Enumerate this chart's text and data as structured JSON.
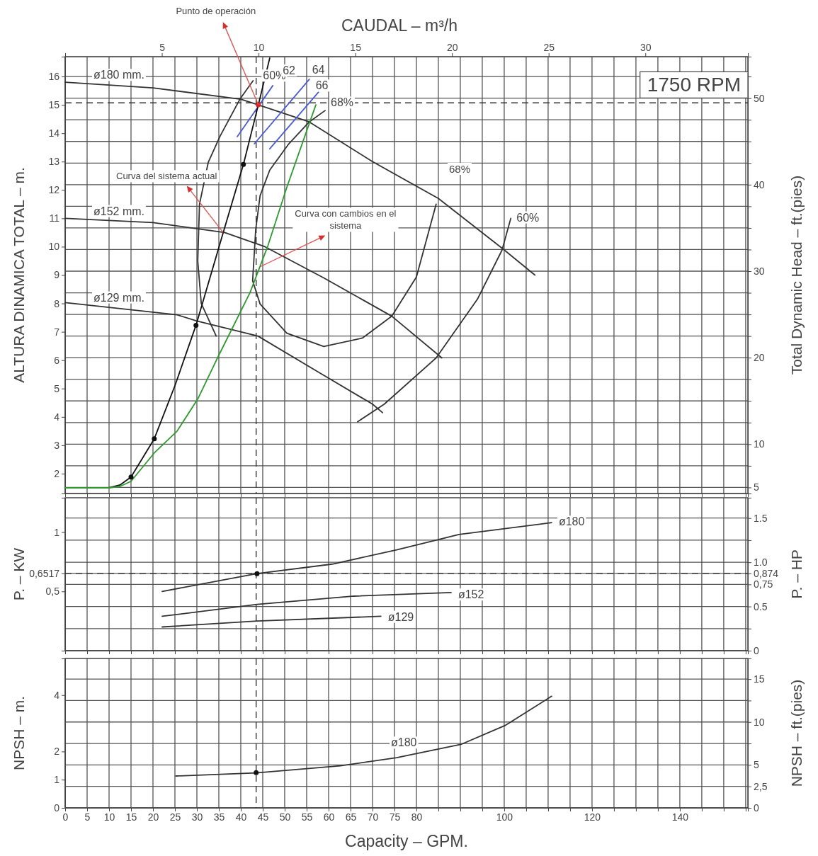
{
  "chart_data": [
    {
      "type": "line",
      "x2label": "CAUDAL – m³/h",
      "ylabel": "ALTURA DINAMICA TOTAL – m.",
      "y2label": "Total Dynamic Head – ft.(pies)",
      "xlim": [
        0,
        155.5
      ],
      "ylim": [
        1.3,
        16.7
      ],
      "y2lim": [
        4.3,
        54.8
      ],
      "x2lim": [
        0,
        35.3
      ],
      "xticks": [
        0,
        5,
        10,
        15,
        20,
        25,
        30,
        35,
        40,
        45,
        50,
        55,
        60,
        65,
        70,
        75,
        80,
        85,
        90,
        95,
        100,
        105,
        110,
        115,
        120,
        125,
        130,
        135,
        140,
        145,
        150,
        155
      ],
      "yticks": [
        2,
        3,
        4,
        5,
        6,
        7,
        8,
        9,
        10,
        11,
        12,
        13,
        14,
        15,
        16
      ],
      "y2ticks": [
        5,
        {
          "value": 7.5,
          "label": null
        },
        10,
        {
          "value": 12.5,
          "label": null
        },
        {
          "value": 15,
          "label": null
        },
        {
          "value": 17.5,
          "label": null
        },
        20,
        {
          "value": 22.5,
          "label": null
        },
        {
          "value": 25,
          "label": null
        },
        {
          "value": 27.5,
          "label": null
        },
        30,
        {
          "value": 32.5,
          "label": null
        },
        {
          "value": 35,
          "label": null
        },
        {
          "value": 37.5,
          "label": null
        },
        40,
        {
          "value": 42.5,
          "label": null
        },
        {
          "value": 45,
          "label": null
        },
        {
          "value": 47.5,
          "label": null
        },
        50,
        {
          "value": 52.5,
          "label": null
        }
      ],
      "x2ticks": [
        5,
        10,
        15,
        20,
        25,
        30
      ],
      "tick_labels": "y",
      "grid": true,
      "series": [
        {
          "name": "ø180 mm.",
          "color": "#333333",
          "x": [
            0,
            20,
            40,
            44,
            55.6,
            70,
            85,
            99.5,
            107
          ],
          "values": [
            15.8,
            15.6,
            15.2,
            15.0,
            14.4,
            13.0,
            11.7,
            9.95,
            9.0
          ]
        },
        {
          "name": "ø152 mm.",
          "color": "#333333",
          "x": [
            0,
            20,
            36.3,
            45.5,
            58.9,
            74.4,
            85.8
          ],
          "values": [
            11.0,
            10.85,
            10.5,
            10.0,
            8.9,
            7.55,
            6.08
          ]
        },
        {
          "name": "ø129 mm.",
          "color": "#333333",
          "x": [
            0,
            25.5,
            30,
            43.9,
            58,
            70,
            72.3
          ],
          "values": [
            8.03,
            7.6,
            7.38,
            6.85,
            5.55,
            4.45,
            4.15
          ]
        },
        {
          "name": "60%",
          "color": "#333333",
          "x": [
            42.8,
            39.8,
            35.3,
            32.6,
            30.6,
            30.2,
            31.0,
            34.4
          ],
          "values": [
            15.85,
            15.2,
            13.9,
            12.98,
            11.5,
            9.5,
            8.0,
            6.85
          ]
        },
        {
          "name": "68%",
          "color": "#333333",
          "x": [
            59.2,
            55.6,
            50.8,
            46.6,
            44.4,
            43.4,
            42.7,
            44.4,
            50.5,
            58.9,
            67.7,
            74.4,
            80,
            84.5
          ],
          "values": [
            14.8,
            14.4,
            13.6,
            12.7,
            11.8,
            10.6,
            8.8,
            7.98,
            6.95,
            6.48,
            6.78,
            7.55,
            8.93,
            11.5
          ]
        },
        {
          "name": "60%",
          "color": "#333333",
          "x": [
            101.5,
            99.5,
            93.9,
            84.5,
            72.7,
            66.6
          ],
          "values": [
            11.0,
            9.88,
            8.15,
            6.08,
            4.45,
            3.83
          ]
        },
        {
          "name": "62",
          "color": "#4b5bdb",
          "x": [
            39.2,
            47.3
          ],
          "values": [
            13.88,
            15.68
          ]
        },
        {
          "name": "64",
          "color": "#4b5bdb",
          "x": [
            43.1,
            55.6
          ],
          "values": [
            13.63,
            15.9
          ]
        },
        {
          "name": "66",
          "color": "#4b5bdb",
          "x": [
            46.6,
            57.7
          ],
          "values": [
            13.45,
            15.45
          ]
        },
        {
          "color": "#111111",
          "x": [
            0,
            10,
            12.5,
            15,
            20.3,
            25,
            29.8,
            36,
            40.6,
            44,
            46.6
          ],
          "values": [
            1.5,
            1.5,
            1.6,
            1.88,
            3.23,
            5.1,
            7.23,
            10.5,
            12.9,
            15.0,
            16.65
          ]
        },
        {
          "color": "#2e9a2e",
          "x": [
            0,
            10,
            12.5,
            15,
            20.3,
            25.5,
            30.2,
            34.7,
            42.1,
            46.1,
            50.5,
            57.1
          ],
          "values": [
            1.5,
            1.5,
            1.55,
            1.73,
            2.73,
            3.5,
            4.63,
            6.08,
            8.38,
            10.0,
            12.1,
            15.0
          ]
        },
        {
          "type": "scatter",
          "color": "#111111",
          "x": [
            15,
            20.3,
            29.8,
            40.6
          ],
          "values": [
            1.88,
            3.23,
            7.23,
            12.9
          ]
        },
        {
          "type": "scatter",
          "color": "#e02020",
          "x": [
            44
          ],
          "values": [
            15.0
          ]
        }
      ],
      "ref_lines": [
        {
          "axis": "x",
          "value": 43.5,
          "line_style": "dashed"
        },
        {
          "axis": "y",
          "value": 15.07,
          "line_style": "dashed"
        }
      ],
      "annotations": [
        {
          "text": "Punto de operación",
          "x": 44,
          "y": 15.0
        },
        {
          "text": "Curva del sistema actual",
          "x": 36,
          "y": 10.5
        },
        {
          "text": "Curva con cambios en el sistema",
          "x": 44.5,
          "y": 9.3
        },
        "68%",
        "1750 RPM"
      ]
    },
    {
      "type": "line",
      "ylabel": "P. – KW",
      "y2label": "P. – HP",
      "xlim": [
        0,
        155.5
      ],
      "ylim": [
        0,
        1.29
      ],
      "y2lim": [
        0,
        1.73
      ],
      "xticks": [
        0,
        5,
        10,
        15,
        20,
        25,
        30,
        35,
        40,
        45,
        50,
        55,
        60,
        65,
        70,
        75,
        80,
        85,
        90,
        95,
        100,
        105,
        110,
        115,
        120,
        125,
        130,
        135,
        140,
        145,
        150,
        155
      ],
      "yticks": [
        {
          "value": 0.5,
          "label": "0,5"
        },
        {
          "value": 0.6517,
          "label": "0,6517"
        },
        1
      ],
      "y2ticks": [
        0,
        {
          "value": 0.25,
          "label": null
        },
        0.5,
        {
          "value": 0.75,
          "label": "0,75"
        },
        {
          "value": 0.874,
          "label": "0,874"
        },
        {
          "value": 1,
          "label": "1.0"
        },
        {
          "value": 1.25,
          "label": null
        },
        1.5
      ],
      "tick_labels": "y",
      "grid": true,
      "series": [
        {
          "name": "ø180",
          "color": "#333333",
          "x": [
            22.1,
            43.7,
            60.8,
            75.5,
            89.7,
            110.8
          ],
          "values": [
            0.5,
            0.65,
            0.73,
            0.85,
            0.98,
            1.08
          ]
        },
        {
          "name": "ø152",
          "color": "#333333",
          "x": [
            22.1,
            43.7,
            65.8,
            87.9
          ],
          "values": [
            0.29,
            0.39,
            0.46,
            0.49
          ]
        },
        {
          "name": "ø129",
          "color": "#333333",
          "x": [
            22.1,
            43.7,
            71.9
          ],
          "values": [
            0.2,
            0.25,
            0.29
          ]
        },
        {
          "type": "scatter",
          "color": "#111111",
          "x": [
            43.7
          ],
          "values": [
            0.65
          ]
        }
      ],
      "ref_lines": [
        {
          "axis": "x",
          "value": 43.5,
          "line_style": "dashed"
        },
        {
          "axis": "y",
          "value": 0.6517,
          "line_style": "dashed"
        }
      ]
    },
    {
      "type": "line",
      "xlabel": "Capacity – GPM.",
      "ylabel": "NPSH – m.",
      "y2label": "NPSH – ft.(pies)",
      "xlim": [
        0,
        155.5
      ],
      "ylim": [
        0,
        5.3
      ],
      "y2lim": [
        0,
        17.4
      ],
      "xticks": [
        0,
        5,
        10,
        15,
        20,
        25,
        30,
        35,
        40,
        45,
        50,
        55,
        60,
        65,
        70,
        75,
        80,
        {
          "value": 85,
          "label": null
        },
        {
          "value": 90,
          "label": null
        },
        {
          "value": 95,
          "label": null
        },
        100,
        {
          "value": 105,
          "label": null
        },
        {
          "value": 110,
          "label": null
        },
        {
          "value": 115,
          "label": null
        },
        120,
        {
          "value": 125,
          "label": null
        },
        {
          "value": 130,
          "label": null
        },
        {
          "value": 135,
          "label": null
        },
        140,
        {
          "value": 145,
          "label": null
        },
        {
          "value": 150,
          "label": null
        },
        {
          "value": 155,
          "label": null
        }
      ],
      "yticks": [
        0,
        1,
        2,
        4
      ],
      "y2ticks": [
        0,
        {
          "value": 2.5,
          "label": "2,5"
        },
        5,
        {
          "value": 7.5,
          "label": null
        },
        10,
        {
          "value": 12.5,
          "label": null
        },
        15
      ],
      "grid": true,
      "series": [
        {
          "name": "ø180",
          "color": "#333333",
          "x": [
            25.2,
            43.5,
            62.7,
            75.5,
            90.3,
            100.3,
            110.8
          ],
          "values": [
            1.13,
            1.24,
            1.49,
            1.78,
            2.26,
            2.93,
            3.96
          ]
        },
        {
          "type": "scatter",
          "color": "#111111",
          "x": [
            43.5
          ],
          "values": [
            1.25
          ]
        }
      ],
      "ref_lines": [
        {
          "axis": "x",
          "value": 43.5,
          "line_style": "dashed"
        }
      ]
    }
  ]
}
